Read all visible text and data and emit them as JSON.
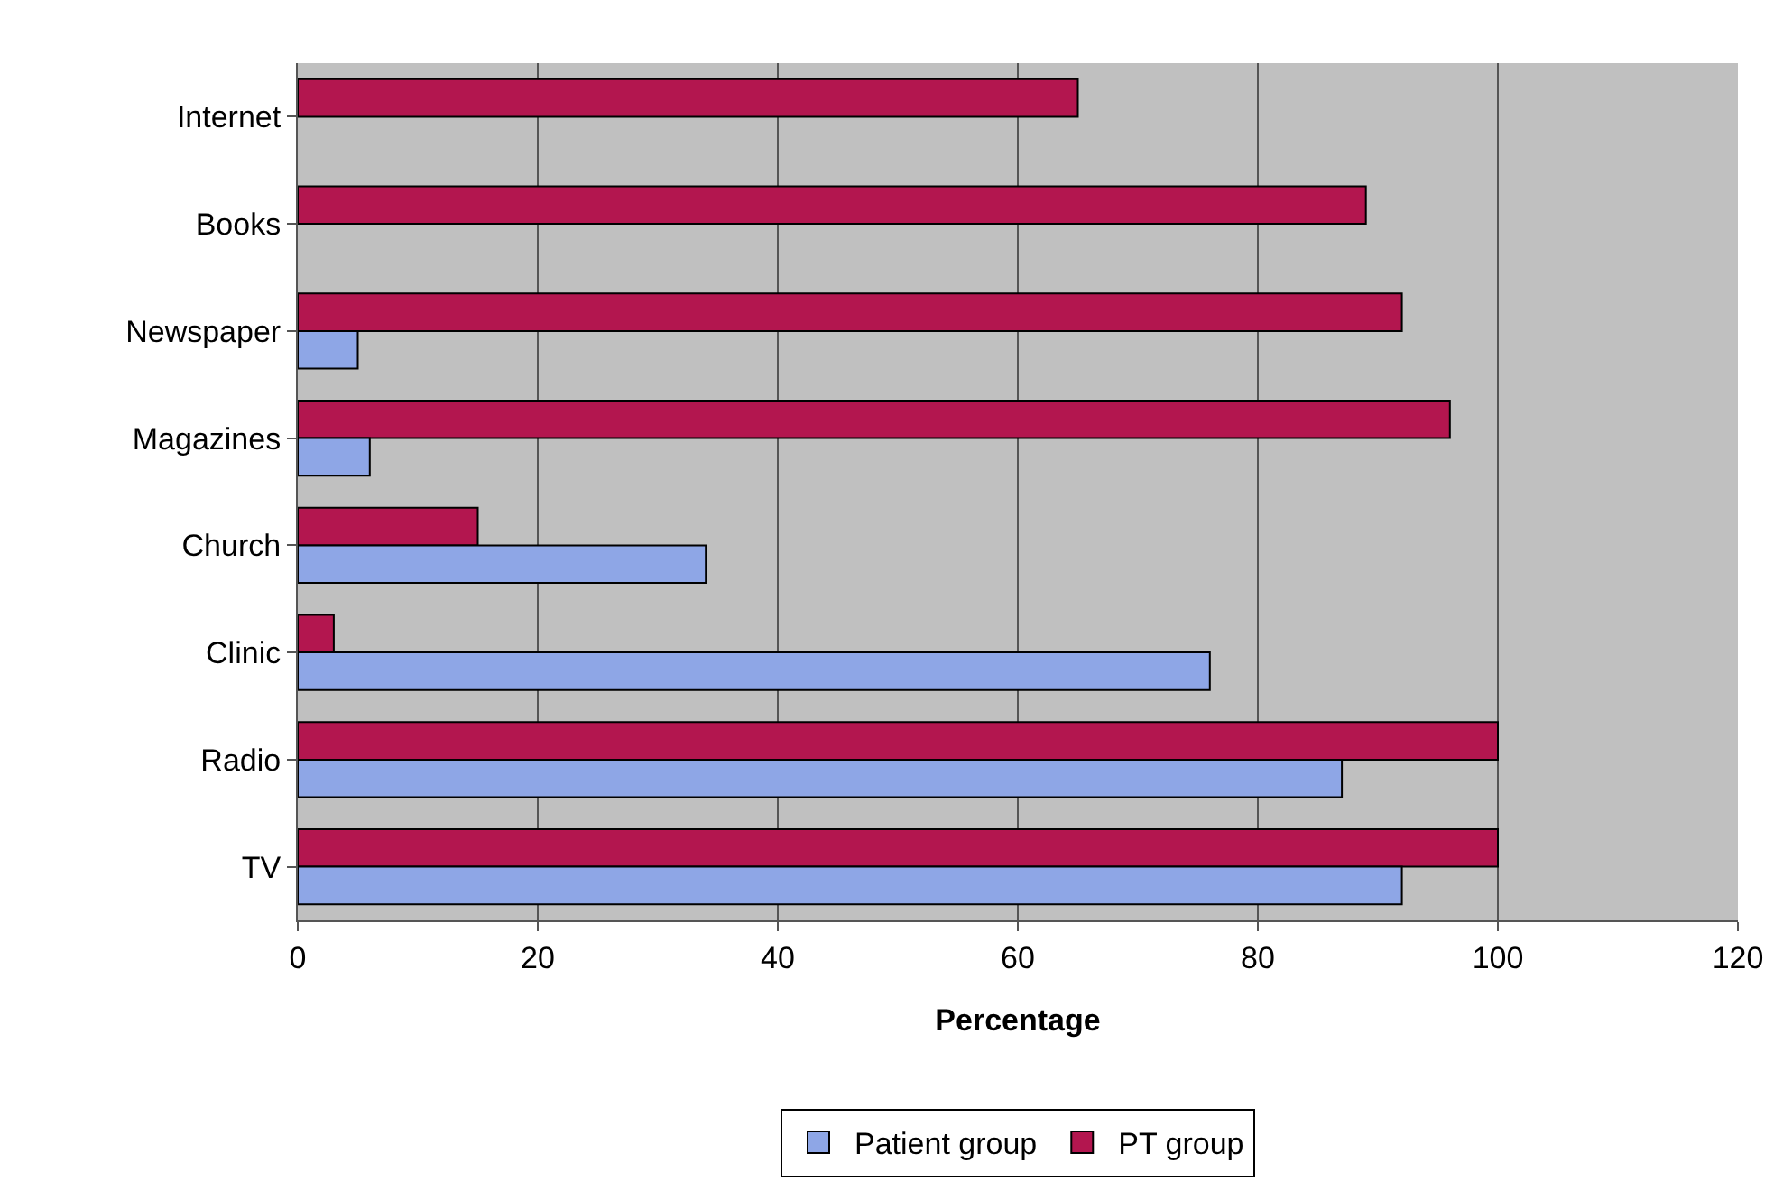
{
  "chart_data": {
    "type": "bar",
    "orientation": "horizontal",
    "xlabel": "Percentage",
    "categories": [
      "Internet",
      "Books",
      "Newspaper",
      "Magazines",
      "Church",
      "Clinic",
      "Radio",
      "TV"
    ],
    "series": [
      {
        "name": "Patient group",
        "color": "#8ea6e6",
        "values": [
          null,
          null,
          5,
          6,
          34,
          76,
          87,
          92
        ]
      },
      {
        "name": "PT group",
        "color": "#b3164f",
        "values": [
          65,
          89,
          92,
          96,
          15,
          3,
          100,
          100
        ]
      }
    ],
    "xlim": [
      0,
      120
    ],
    "xticks": [
      0,
      20,
      40,
      60,
      80,
      100,
      120
    ],
    "grid": "x",
    "legend": "bottom"
  }
}
